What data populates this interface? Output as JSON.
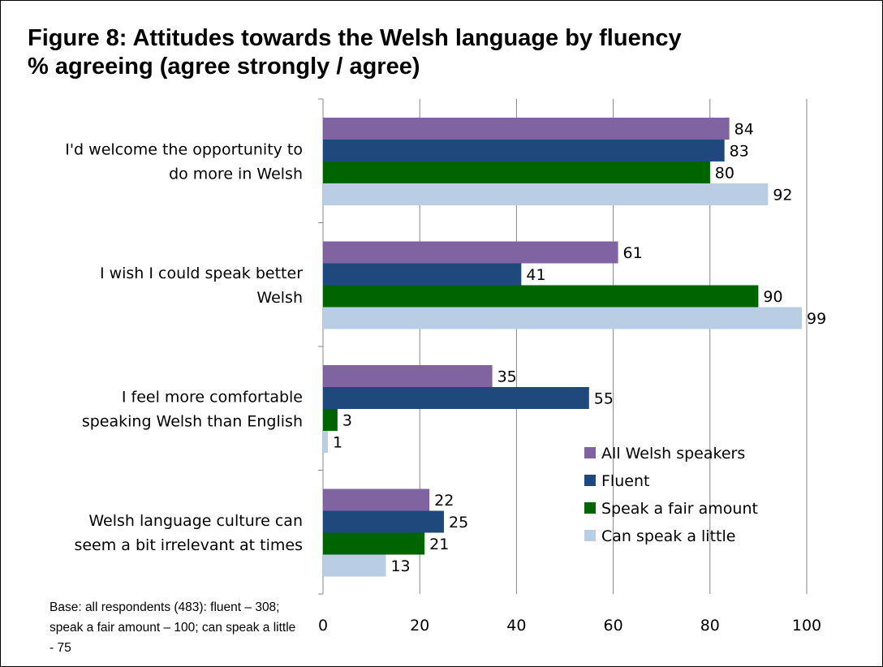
{
  "title_lines": [
    "Figure 8: Attitudes towards the Welsh language by fluency",
    "% agreeing (agree strongly / agree)"
  ],
  "base_note": "Base: all respondents (483): fluent – 308; speak a fair amount – 100; can speak a little -  75",
  "chart_data": {
    "type": "bar",
    "orientation": "horizontal",
    "title": "Figure 8: Attitudes towards the Welsh language by fluency % agreeing (agree strongly / agree)",
    "categories": [
      [
        "I'd welcome the opportunity to",
        "do more in Welsh"
      ],
      [
        "I wish I could speak better",
        "Welsh"
      ],
      [
        "I feel more comfortable",
        "speaking Welsh than English"
      ],
      [
        "Welsh language culture can",
        "seem a bit irrelevant at times"
      ]
    ],
    "series": [
      {
        "name": "All Welsh speakers",
        "color": "#8064a2",
        "values": [
          84,
          61,
          35,
          22
        ]
      },
      {
        "name": "Fluent",
        "color": "#1f497d",
        "values": [
          83,
          41,
          55,
          25
        ]
      },
      {
        "name": "Speak a fair amount",
        "color": "#006400",
        "values": [
          80,
          90,
          3,
          21
        ]
      },
      {
        "name": "Can speak a little",
        "color": "#b9cde5",
        "values": [
          92,
          99,
          1,
          13
        ]
      }
    ],
    "xlim": [
      0,
      100
    ],
    "xticks": [
      0,
      20,
      40,
      60,
      80,
      100
    ],
    "grid": true,
    "legend_position": "bottom-right",
    "data_labels": true
  }
}
